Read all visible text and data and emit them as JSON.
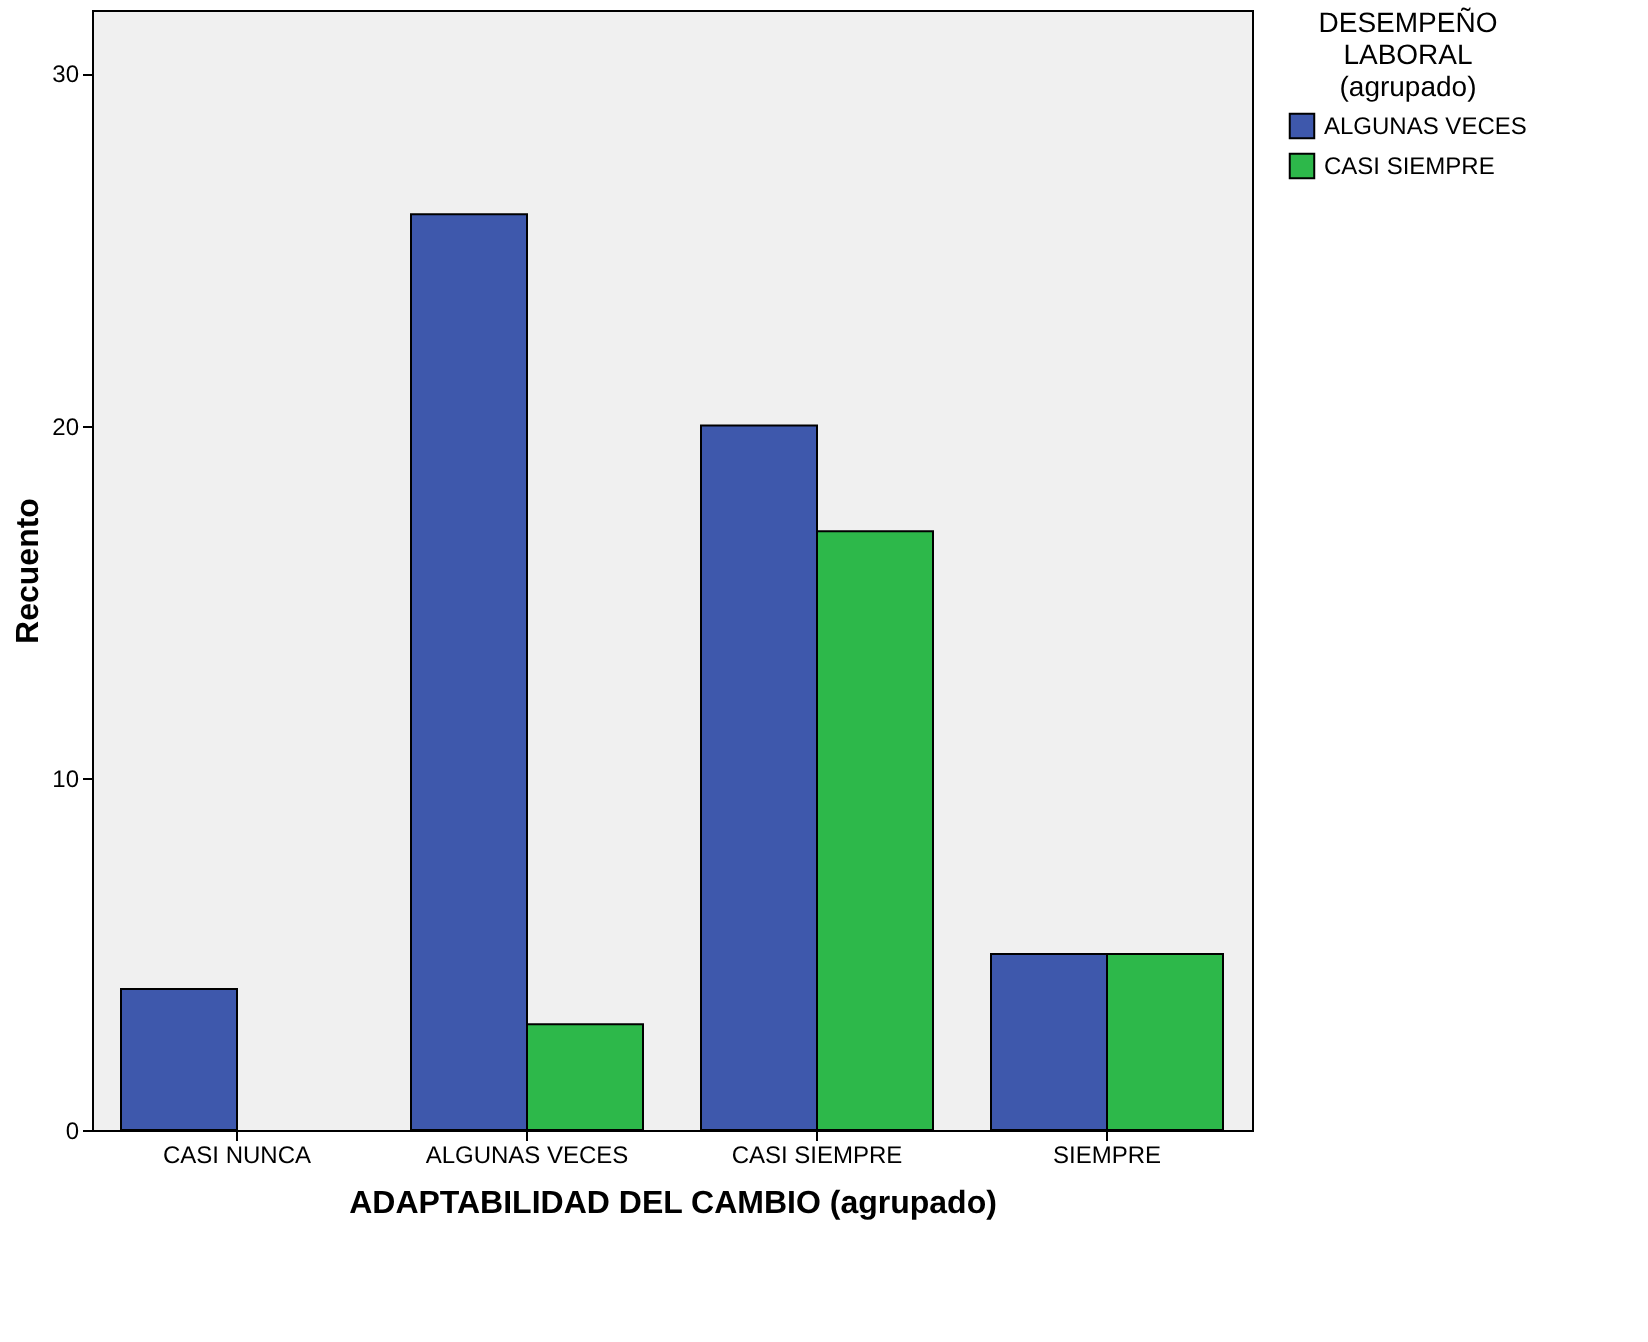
{
  "chart_data": {
    "type": "bar",
    "xlabel": "ADAPTABILIDAD DEL CAMBIO (agrupado)",
    "ylabel": "Recuento",
    "legend_title": "DESEMPEÑO LABORAL (agrupado)",
    "categories": [
      "CASI NUNCA",
      "ALGUNAS VECES",
      "CASI SIEMPRE",
      "SIEMPRE"
    ],
    "series": [
      {
        "name": "ALGUNAS VECES",
        "color": "#3e58ac",
        "values": [
          4,
          26,
          20,
          5
        ]
      },
      {
        "name": "CASI SIEMPRE",
        "color": "#2db84a",
        "values": [
          null,
          3,
          17,
          5
        ]
      }
    ],
    "ylim": [
      0,
      31.8
    ],
    "yticks": [
      0,
      10,
      20,
      30
    ],
    "grid": false,
    "legend": "top right"
  }
}
